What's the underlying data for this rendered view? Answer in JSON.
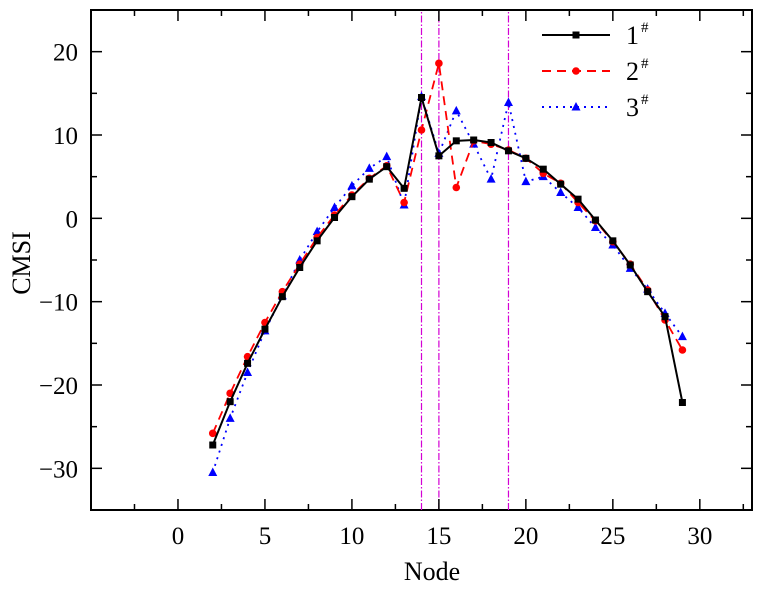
{
  "chart_data": {
    "type": "line",
    "xlabel": "Node",
    "ylabel": "CMSI",
    "xlim": [
      -5,
      33
    ],
    "ylim": [
      -35,
      25
    ],
    "xticks": [
      0,
      5,
      10,
      15,
      20,
      25,
      30
    ],
    "yticks": [
      -30,
      -20,
      -10,
      0,
      10,
      20
    ],
    "grid": false,
    "legend_position": "top-right",
    "vlines": [
      14,
      15,
      19
    ],
    "vline_color": "#d400d4",
    "series": [
      {
        "name": "1#",
        "label_main": "1",
        "label_sup": "#",
        "color": "#000000",
        "dash": "",
        "marker": "square",
        "x": [
          2,
          3,
          4,
          5,
          6,
          7,
          8,
          9,
          10,
          11,
          12,
          13,
          14,
          15,
          16,
          17,
          18,
          19,
          20,
          21,
          22,
          23,
          24,
          25,
          26,
          27,
          28,
          29
        ],
        "y": [
          -27.2,
          -22,
          -17.4,
          -13.3,
          -9.4,
          -5.9,
          -2.7,
          0.1,
          2.6,
          4.7,
          6.2,
          3.6,
          14.5,
          7.5,
          9.3,
          9.4,
          9.1,
          8.1,
          7.2,
          5.9,
          4.1,
          2.3,
          -0.2,
          -2.7,
          -5.6,
          -8.8,
          -11.8,
          -22.1
        ]
      },
      {
        "name": "2#",
        "label_main": "2",
        "label_sup": "#",
        "color": "#ff0000",
        "dash": "9,6",
        "marker": "circle",
        "x": [
          2,
          3,
          4,
          5,
          6,
          7,
          8,
          9,
          10,
          11,
          12,
          13,
          14,
          15,
          16,
          17,
          18,
          19,
          20,
          21,
          22,
          23,
          24,
          25,
          26,
          27,
          28,
          29
        ],
        "y": [
          -25.8,
          -21,
          -16.6,
          -12.5,
          -8.8,
          -5.5,
          -2.3,
          0.4,
          2.8,
          4.8,
          6.3,
          1.9,
          10.6,
          18.6,
          3.7,
          9.3,
          8.9,
          8.2,
          7.2,
          5.4,
          4.2,
          1.9,
          -0.3,
          -2.8,
          -5.5,
          -8.6,
          -12.2,
          -15.8
        ]
      },
      {
        "name": "3#",
        "label_main": "3",
        "label_sup": "#",
        "color": "#0000ff",
        "dash": "2,5",
        "marker": "triangle",
        "x": [
          2,
          3,
          4,
          5,
          6,
          7,
          8,
          9,
          10,
          11,
          12,
          13,
          14,
          15,
          16,
          17,
          18,
          19,
          20,
          21,
          22,
          23,
          24,
          25,
          26,
          27,
          28,
          29
        ],
        "y": [
          -30.5,
          -24,
          -18.5,
          -13.5,
          -9.3,
          -5,
          -1.6,
          1.3,
          3.9,
          6,
          7.4,
          1.6,
          14.6,
          7.8,
          12.9,
          8.9,
          4.7,
          13.9,
          4.4,
          5,
          3.1,
          1.3,
          -1.1,
          -3.2,
          -6,
          -8.5,
          -11.4,
          -14.2
        ]
      }
    ]
  }
}
